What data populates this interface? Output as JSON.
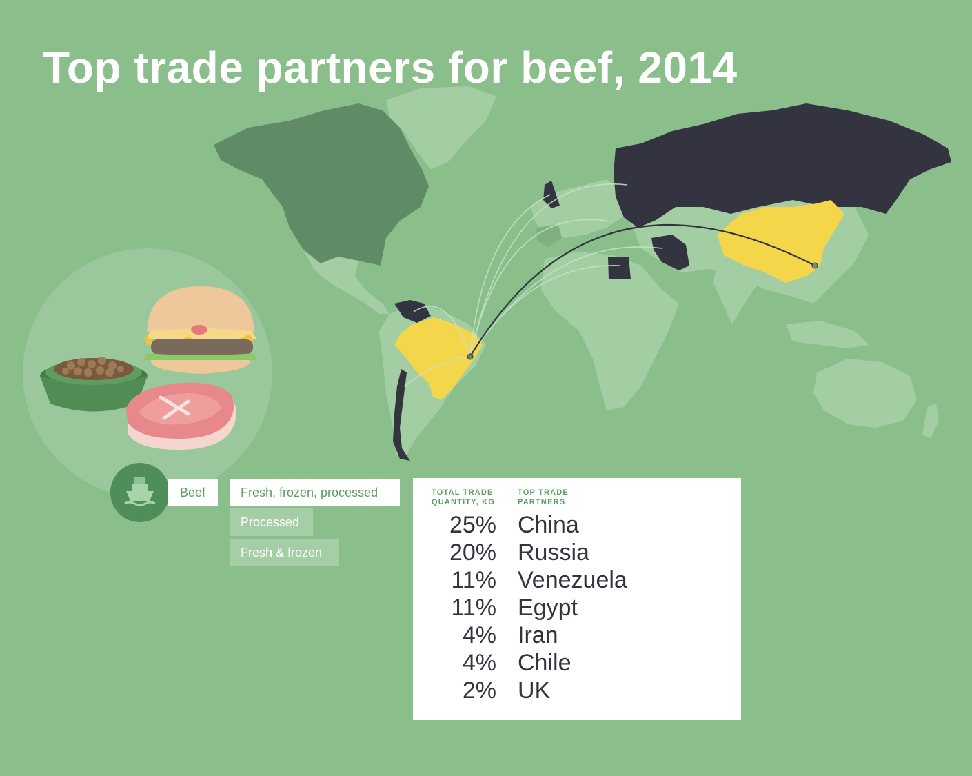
{
  "title": "Top trade partners for beef, 2014",
  "colors": {
    "background": "#8abe8b",
    "land": "#a3cea4",
    "north_america": "#5f8c66",
    "highlight_yellow": "#f4d64a",
    "partner_dark": "#33343f",
    "accent_green": "#5b9e63"
  },
  "map": {
    "origin": "Brazil",
    "highlighted_exporters": [
      "Brazil"
    ],
    "highlighted_partners_yellow": [
      "China"
    ],
    "dark_partners": [
      "Russia",
      "Venezuela",
      "Egypt",
      "Iran",
      "Chile",
      "UK"
    ],
    "primary_route": "Brazil to China"
  },
  "product": {
    "icon": "ship-icon",
    "label": "Beef",
    "illustrations": [
      "pet-food-bowl",
      "burger",
      "steak"
    ]
  },
  "filters": [
    {
      "label": "Fresh, frozen, processed",
      "active": true
    },
    {
      "label": "Processed",
      "active": false
    },
    {
      "label": "Fresh & frozen",
      "active": false
    }
  ],
  "table": {
    "col_quantity": "TOTAL TRADE QUANTITY, KG",
    "col_partners": "TOP TRADE PARTNERS",
    "rows": [
      {
        "pct": "25%",
        "country": "China"
      },
      {
        "pct": "20%",
        "country": "Russia"
      },
      {
        "pct": "11%",
        "country": "Venezuela"
      },
      {
        "pct": "11%",
        "country": "Egypt"
      },
      {
        "pct": "4%",
        "country": "Iran"
      },
      {
        "pct": "4%",
        "country": "Chile"
      },
      {
        "pct": "2%",
        "country": "UK"
      }
    ]
  }
}
